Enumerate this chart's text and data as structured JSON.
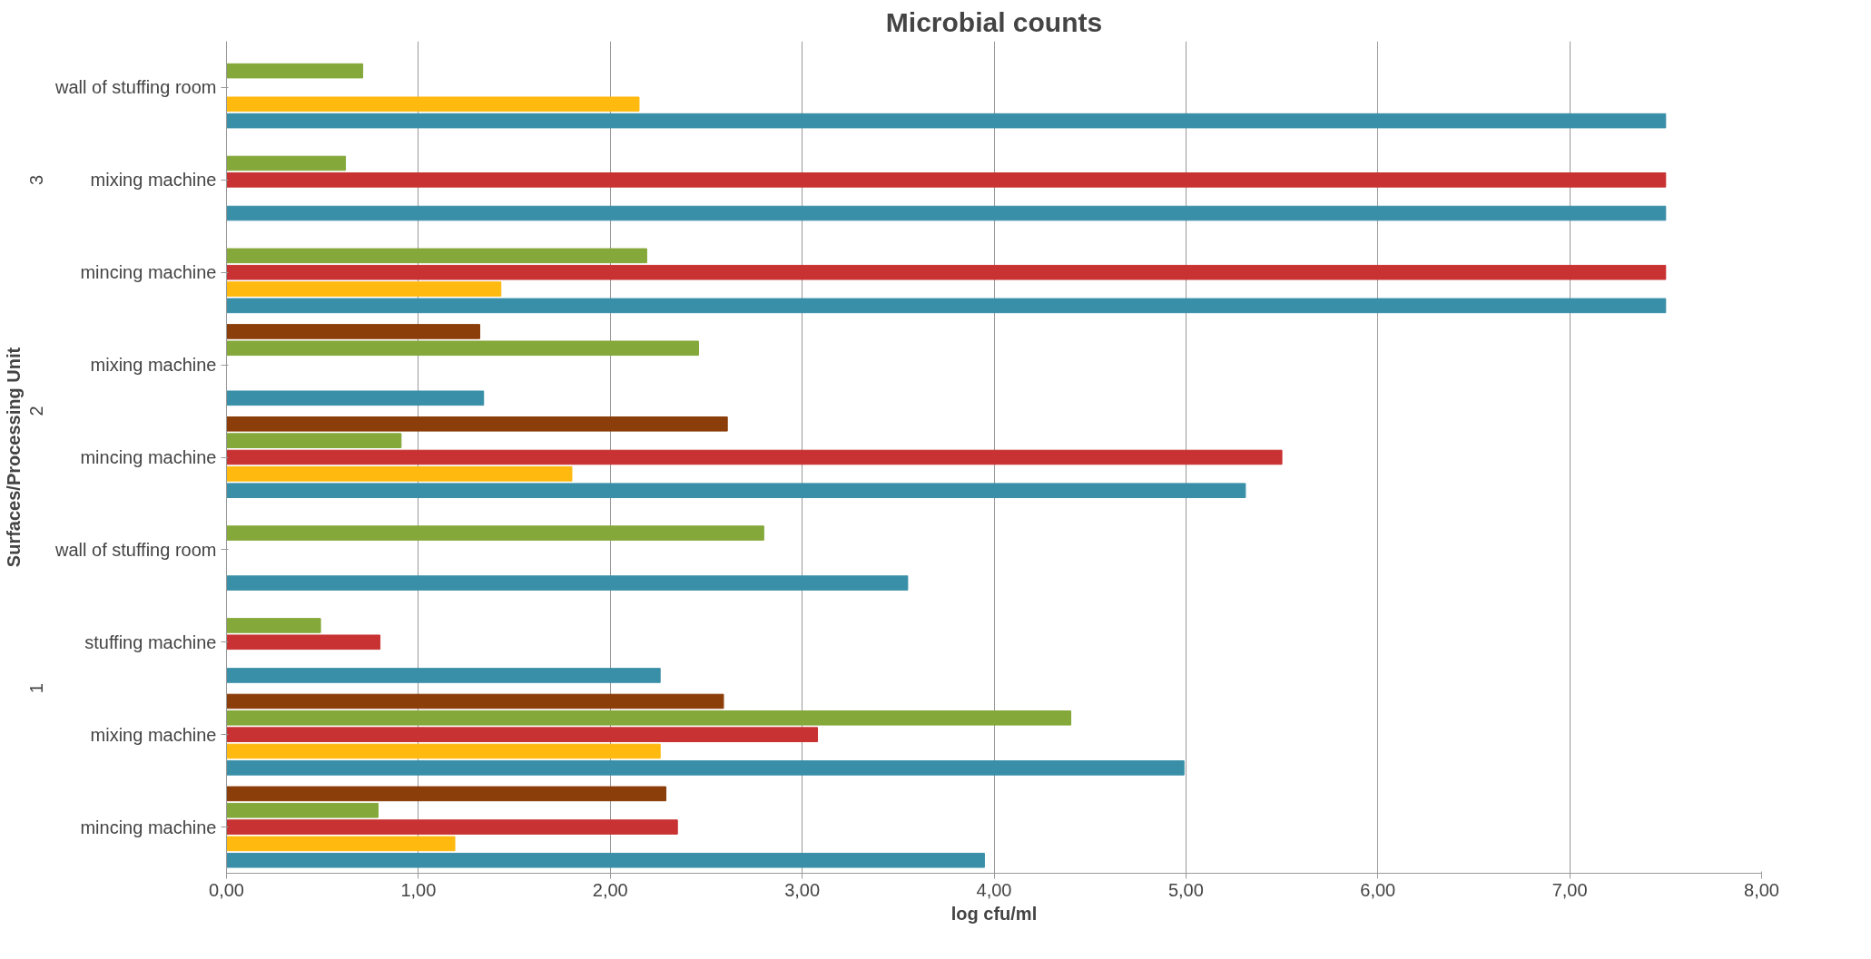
{
  "chart_data": {
    "type": "bar",
    "orientation": "horizontal",
    "title": "Microbial counts",
    "xlabel": "log cfu/ml",
    "ylabel": "Surfaces/Processing Unit",
    "categories": [
      "wall of stuffing room",
      "mixing machine",
      "mincing machine",
      "mixing machine",
      "mincing machine",
      "wall of stuffing room",
      "stuffing machine",
      "mixing machine",
      "mincing machine"
    ],
    "series": [
      {
        "color": "#3a8fa8",
        "values": [
          7.5,
          7.5,
          7.5,
          1.34,
          5.31,
          3.55,
          2.26,
          4.99,
          3.95
        ]
      },
      {
        "color": "#ffb90f",
        "values": [
          2.15,
          0,
          1.43,
          0,
          1.8,
          0,
          0,
          2.26,
          1.19
        ]
      },
      {
        "color": "#c83232",
        "values": [
          0,
          7.5,
          7.5,
          0,
          5.5,
          0,
          0.8,
          3.08,
          2.35
        ]
      },
      {
        "color": "#85a83a",
        "values": [
          0.71,
          0.62,
          2.19,
          2.46,
          0.91,
          2.8,
          0.49,
          4.4,
          0.79
        ]
      },
      {
        "color": "#8b3d0a",
        "values": [
          0,
          0,
          0,
          1.32,
          2.61,
          0,
          0,
          2.59,
          2.29
        ]
      }
    ],
    "annotations": [
      "3",
      "2",
      "1"
    ],
    "xlim": [
      0,
      8
    ],
    "xticks": [
      {
        "value": 0,
        "label": "0,00"
      },
      {
        "value": 1,
        "label": "1,00"
      },
      {
        "value": 2,
        "label": "2,00"
      },
      {
        "value": 3,
        "label": "3,00"
      },
      {
        "value": 4,
        "label": "4,00"
      },
      {
        "value": 5,
        "label": "5,00"
      },
      {
        "value": 6,
        "label": "6,00"
      },
      {
        "value": 7,
        "label": "7,00"
      },
      {
        "value": 8,
        "label": "8,00"
      }
    ],
    "grid": "x"
  }
}
